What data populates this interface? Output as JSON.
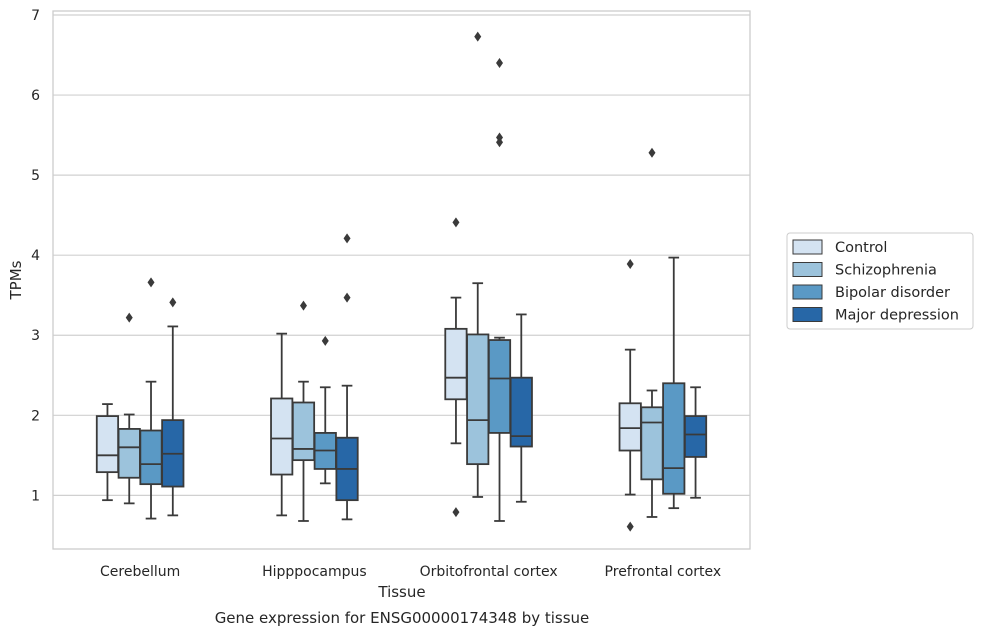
{
  "chart_data": {
    "type": "box",
    "title": "",
    "caption": "Gene expression for ENSG00000174348 by tissue",
    "xlabel": "Tissue",
    "ylabel": "TPMs",
    "ylim": [
      0.33,
      7.05
    ],
    "yticks": [
      1,
      2,
      3,
      4,
      5,
      6,
      7
    ],
    "grid": "horizontal",
    "legend_position": "right",
    "categories": [
      "Cerebellum",
      "Hipppocampus",
      "Orbitofrontal cortex",
      "Prefrontal cortex"
    ],
    "series": [
      {
        "name": "Control",
        "color": "#d4e3f2",
        "boxes": [
          {
            "whisker_low": 0.94,
            "q1": 1.29,
            "median": 1.5,
            "q3": 1.99,
            "whisker_high": 2.14,
            "outliers": []
          },
          {
            "whisker_low": 0.75,
            "q1": 1.26,
            "median": 1.71,
            "q3": 2.21,
            "whisker_high": 3.02,
            "outliers": []
          },
          {
            "whisker_low": 1.65,
            "q1": 2.2,
            "median": 2.47,
            "q3": 3.08,
            "whisker_high": 3.47,
            "outliers": [
              0.79,
              4.41
            ]
          },
          {
            "whisker_low": 1.01,
            "q1": 1.56,
            "median": 1.84,
            "q3": 2.15,
            "whisker_high": 2.82,
            "outliers": [
              0.61,
              3.89
            ]
          }
        ]
      },
      {
        "name": "Schizophrenia",
        "color": "#9cc3dc",
        "boxes": [
          {
            "whisker_low": 0.9,
            "q1": 1.22,
            "median": 1.6,
            "q3": 1.83,
            "whisker_high": 2.01,
            "outliers": [
              3.22
            ]
          },
          {
            "whisker_low": 0.68,
            "q1": 1.44,
            "median": 1.58,
            "q3": 2.16,
            "whisker_high": 2.42,
            "outliers": [
              3.37
            ]
          },
          {
            "whisker_low": 0.98,
            "q1": 1.39,
            "median": 1.94,
            "q3": 3.01,
            "whisker_high": 3.65,
            "outliers": [
              6.73
            ]
          },
          {
            "whisker_low": 0.73,
            "q1": 1.2,
            "median": 1.91,
            "q3": 2.1,
            "whisker_high": 2.31,
            "outliers": [
              5.28
            ]
          }
        ]
      },
      {
        "name": "Bipolar disorder",
        "color": "#5a99c5",
        "boxes": [
          {
            "whisker_low": 0.71,
            "q1": 1.14,
            "median": 1.39,
            "q3": 1.81,
            "whisker_high": 2.42,
            "outliers": [
              3.66
            ]
          },
          {
            "whisker_low": 1.15,
            "q1": 1.33,
            "median": 1.56,
            "q3": 1.78,
            "whisker_high": 2.35,
            "outliers": [
              2.93
            ]
          },
          {
            "whisker_low": 0.68,
            "q1": 1.78,
            "median": 2.46,
            "q3": 2.94,
            "whisker_high": 2.97,
            "outliers": [
              5.41,
              5.47,
              6.4
            ]
          },
          {
            "whisker_low": 0.84,
            "q1": 1.02,
            "median": 1.34,
            "q3": 2.4,
            "whisker_high": 3.97,
            "outliers": []
          }
        ]
      },
      {
        "name": "Major depression",
        "color": "#2767a7",
        "boxes": [
          {
            "whisker_low": 0.75,
            "q1": 1.11,
            "median": 1.52,
            "q3": 1.94,
            "whisker_high": 3.11,
            "outliers": [
              3.41
            ]
          },
          {
            "whisker_low": 0.7,
            "q1": 0.94,
            "median": 1.33,
            "q3": 1.72,
            "whisker_high": 2.37,
            "outliers": [
              3.47,
              4.21
            ]
          },
          {
            "whisker_low": 0.92,
            "q1": 1.61,
            "median": 1.74,
            "q3": 2.47,
            "whisker_high": 3.26,
            "outliers": []
          },
          {
            "whisker_low": 0.97,
            "q1": 1.48,
            "median": 1.76,
            "q3": 1.99,
            "whisker_high": 2.35,
            "outliers": []
          }
        ]
      }
    ]
  }
}
